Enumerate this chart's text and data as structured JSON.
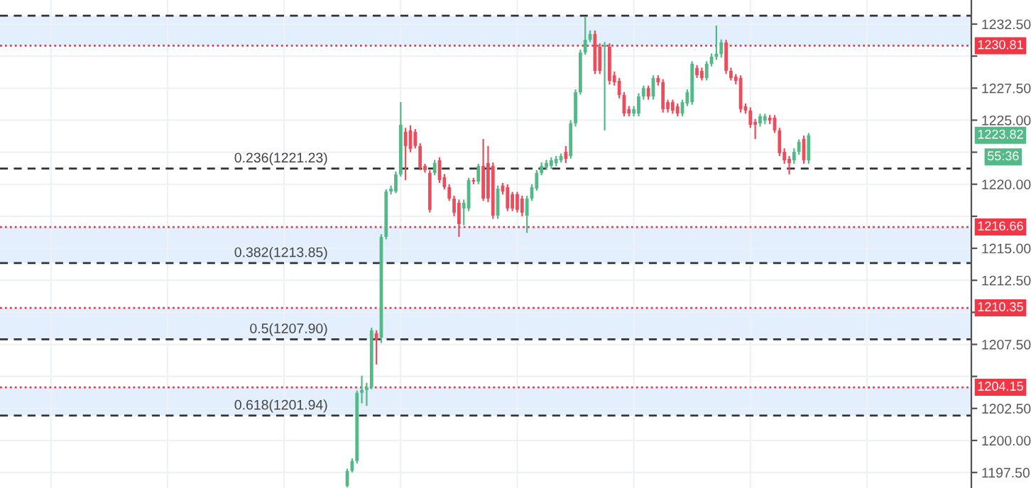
{
  "chart_data": {
    "type": "candlestick",
    "categories": [
      null,
      null,
      null,
      null,
      null,
      null,
      null,
      null,
      null,
      null,
      null,
      null,
      null,
      null,
      null,
      null,
      null,
      null,
      null,
      null,
      null,
      null,
      null,
      null,
      null,
      null,
      null,
      null,
      null,
      null,
      null,
      null,
      null,
      null,
      null,
      null,
      null,
      null,
      null,
      null,
      null,
      null,
      null,
      null,
      null,
      null,
      null,
      null,
      null,
      null,
      null,
      null,
      null,
      null,
      null,
      null,
      null,
      null,
      null,
      null,
      null,
      null,
      null,
      null,
      null,
      null,
      null,
      null,
      null,
      null,
      null,
      null,
      null,
      null,
      null,
      null,
      null,
      null,
      null,
      null,
      null,
      null,
      null,
      null,
      null,
      null,
      null,
      null,
      null,
      null,
      null,
      null,
      null,
      null,
      null,
      null,
      null,
      null,
      null,
      null,
      null,
      null,
      null,
      null,
      null,
      null,
      null,
      null,
      null,
      null,
      null,
      null,
      null,
      null,
      null,
      null,
      null,
      null,
      null,
      null,
      null,
      null,
      null,
      null,
      null,
      null,
      null,
      null,
      null,
      null,
      null,
      null,
      null,
      null,
      null,
      null,
      null,
      null,
      null,
      null,
      null,
      null,
      null,
      null,
      null,
      null,
      null,
      null,
      null,
      null,
      null,
      null,
      null,
      null,
      null,
      null,
      null,
      null,
      null,
      null,
      null,
      null,
      null,
      null,
      null,
      null,
      null,
      null,
      null,
      null,
      null,
      null,
      null,
      null,
      null,
      null,
      null,
      null,
      null,
      null,
      null,
      null,
      null,
      null,
      null,
      null,
      null,
      null,
      null,
      null,
      null,
      null,
      null,
      null,
      null,
      null,
      null,
      null,
      null,
      null
    ],
    "ohlc": [
      null,
      null,
      null,
      null,
      null,
      null,
      null,
      null,
      null,
      null,
      null,
      null,
      null,
      null,
      null,
      null,
      null,
      null,
      null,
      null,
      null,
      null,
      null,
      null,
      null,
      null,
      null,
      null,
      null,
      null,
      null,
      null,
      null,
      null,
      null,
      null,
      null,
      null,
      null,
      null,
      null,
      null,
      null,
      null,
      null,
      null,
      null,
      null,
      null,
      null,
      null,
      null,
      null,
      null,
      null,
      null,
      null,
      null,
      null,
      null,
      null,
      null,
      null,
      null,
      null,
      null,
      null,
      null,
      null,
      null,
      null,
      [
        1196.45,
        1197.8,
        1196.35,
        1197.63
      ],
      [
        1197.63,
        1198.6,
        1197.5,
        1198.4
      ],
      [
        1198.4,
        1203.9,
        1198.2,
        1203.72
      ],
      [
        1203.72,
        1205.05,
        1202.9,
        1203.94
      ],
      [
        1203.94,
        1204.5,
        1202.7,
        1204.16
      ],
      [
        1204.16,
        1208.8,
        1204.0,
        1208.59
      ],
      [
        1208.37,
        1208.6,
        1205.93,
        1207.81
      ],
      [
        1208.03,
        1216.1,
        1207.6,
        1215.89
      ],
      [
        1215.89,
        1219.6,
        1215.7,
        1219.44
      ],
      [
        1219.44,
        1219.9,
        1219.2,
        1219.66
      ],
      [
        1219.44,
        1221.0,
        1219.3,
        1220.77
      ],
      [
        1220.77,
        1226.41,
        1220.6,
        1224.64
      ],
      [
        1224.09,
        1224.4,
        1220.32,
        1222.98
      ],
      [
        1224.2,
        1224.6,
        1222.5,
        1222.76
      ],
      [
        1224.09,
        1224.3,
        1222.8,
        1222.98
      ],
      [
        1222.98,
        1223.2,
        1221.1,
        1221.32
      ],
      [
        1221.43,
        1221.6,
        1220.9,
        1221.1
      ],
      [
        1220.88,
        1221.1,
        1217.8,
        1218.0
      ],
      [
        1220.88,
        1221.9,
        1220.7,
        1221.65
      ],
      [
        1221.87,
        1222.1,
        1220.1,
        1220.32
      ],
      [
        1220.54,
        1220.8,
        1219.6,
        1219.77
      ],
      [
        1219.77,
        1220.0,
        1218.7,
        1218.88
      ],
      [
        1218.88,
        1219.1,
        1217.5,
        1217.78
      ],
      [
        1218.55,
        1218.8,
        1215.89,
        1216.89
      ],
      [
        1218.11,
        1218.8,
        1216.8,
        1218.55
      ],
      [
        1218.11,
        1220.5,
        1217.9,
        1220.32
      ],
      [
        1220.32,
        1220.5,
        1220.0,
        1220.21
      ],
      [
        1220.21,
        1221.6,
        1220.0,
        1221.43
      ],
      [
        1221.43,
        1223.53,
        1218.7,
        1218.88
      ],
      [
        1221.65,
        1222.98,
        1218.6,
        1218.88
      ],
      [
        1221.43,
        1221.7,
        1217.3,
        1217.55
      ],
      [
        1217.55,
        1219.9,
        1217.3,
        1219.66
      ],
      [
        1219.9,
        1220.1,
        1219.2,
        1219.44
      ],
      [
        1219.77,
        1220.0,
        1217.9,
        1218.11
      ],
      [
        1219.22,
        1219.4,
        1217.9,
        1218.11
      ],
      [
        1219.22,
        1219.4,
        1217.8,
        1218.0
      ],
      [
        1218.88,
        1219.1,
        1217.5,
        1217.78
      ],
      [
        1217.55,
        1219.1,
        1216.2,
        1218.88
      ],
      [
        1218.88,
        1220.0,
        1218.7,
        1219.77
      ],
      [
        1219.66,
        1221.1,
        1219.5,
        1220.88
      ],
      [
        1220.88,
        1221.7,
        1220.7,
        1221.43
      ],
      [
        1221.32,
        1221.9,
        1221.1,
        1221.65
      ],
      [
        1221.43,
        1222.1,
        1221.2,
        1221.87
      ],
      [
        1221.65,
        1222.2,
        1221.4,
        1221.98
      ],
      [
        1221.87,
        1222.4,
        1221.7,
        1222.2
      ],
      [
        1222.53,
        1222.98,
        1221.65,
        1221.98
      ],
      [
        1222.2,
        1225.0,
        1222.0,
        1224.75
      ],
      [
        1224.75,
        1227.4,
        1224.5,
        1227.18
      ],
      [
        1227.18,
        1230.5,
        1227.0,
        1230.28
      ],
      [
        1230.28,
        1233.05,
        1230.1,
        1231.28
      ],
      [
        1231.28,
        1232.0,
        1231.1,
        1231.72
      ],
      [
        1231.72,
        1232.0,
        1228.6,
        1228.85
      ],
      [
        1230.73,
        1231.0,
        1228.6,
        1228.85
      ],
      [
        1230.73,
        1231.1,
        1224.2,
        1230.84
      ],
      [
        1230.73,
        1231.0,
        1227.8,
        1228.07
      ],
      [
        1228.5,
        1228.8,
        1227.7,
        1227.96
      ],
      [
        1228.07,
        1228.3,
        1226.7,
        1226.96
      ],
      [
        1226.96,
        1227.2,
        1225.3,
        1225.52
      ],
      [
        1225.86,
        1226.1,
        1225.3,
        1225.52
      ],
      [
        1225.52,
        1226.1,
        1225.3,
        1225.86
      ],
      [
        1225.52,
        1227.1,
        1225.3,
        1226.85
      ],
      [
        1226.85,
        1227.7,
        1226.6,
        1227.5
      ],
      [
        1227.5,
        1227.7,
        1226.6,
        1226.85
      ],
      [
        1226.85,
        1228.5,
        1226.6,
        1228.29
      ],
      [
        1228.29,
        1228.5,
        1227.7,
        1227.96
      ],
      [
        1227.96,
        1228.2,
        1225.6,
        1225.86
      ],
      [
        1226.41,
        1226.6,
        1225.6,
        1225.86
      ],
      [
        1226.41,
        1226.6,
        1225.5,
        1225.75
      ],
      [
        1226.08,
        1226.3,
        1225.3,
        1225.52
      ],
      [
        1225.52,
        1226.6,
        1225.3,
        1226.41
      ],
      [
        1226.3,
        1227.4,
        1226.1,
        1227.18
      ],
      [
        1226.41,
        1229.6,
        1226.2,
        1229.4
      ],
      [
        1229.07,
        1229.3,
        1228.3,
        1228.51
      ],
      [
        1228.85,
        1229.1,
        1228.1,
        1228.29
      ],
      [
        1228.29,
        1229.6,
        1228.1,
        1229.4
      ],
      [
        1229.4,
        1230.2,
        1229.2,
        1229.95
      ],
      [
        1229.95,
        1232.39,
        1229.7,
        1230.17
      ],
      [
        1230.17,
        1231.3,
        1229.9,
        1231.06
      ],
      [
        1231.06,
        1231.28,
        1228.6,
        1228.85
      ],
      [
        1228.85,
        1229.1,
        1228.1,
        1228.29
      ],
      [
        1228.4,
        1228.6,
        1227.8,
        1228.07
      ],
      [
        1228.29,
        1228.5,
        1225.6,
        1225.86
      ],
      [
        1226.08,
        1226.3,
        1225.5,
        1225.75
      ],
      [
        1225.75,
        1226.0,
        1224.4,
        1224.64
      ],
      [
        1224.86,
        1225.1,
        1223.53,
        1224.64
      ],
      [
        1224.75,
        1225.5,
        1224.5,
        1225.3
      ],
      [
        1224.97,
        1225.5,
        1224.7,
        1225.3
      ],
      [
        1225.19,
        1225.4,
        1224.7,
        1224.97
      ],
      [
        1225.19,
        1225.4,
        1224.0,
        1224.2
      ],
      [
        1224.2,
        1224.4,
        1222.2,
        1222.42
      ],
      [
        1222.53,
        1222.8,
        1221.6,
        1221.87
      ],
      [
        1221.98,
        1222.2,
        1220.77,
        1221.65
      ],
      [
        1221.87,
        1222.8,
        1221.6,
        1222.53
      ],
      [
        1222.53,
        1223.5,
        1222.3,
        1223.31
      ],
      [
        1223.53,
        1223.8,
        1221.6,
        1221.87
      ],
      [
        1221.87,
        1224.0,
        1221.6,
        1223.82
      ],
      null,
      null,
      null,
      null,
      null,
      null,
      null,
      null,
      null,
      null,
      null,
      null,
      null,
      null,
      null,
      null,
      null,
      null,
      null,
      null,
      null,
      null,
      null,
      null,
      null,
      null,
      null,
      null,
      null,
      null,
      null,
      null,
      null
    ],
    "ylim": [
      1196.29,
      1234.38
    ],
    "yticks": [
      {
        "value": 1197.5,
        "label": "1197.50"
      },
      {
        "value": 1200,
        "label": "1200.00"
      },
      {
        "value": 1202.5,
        "label": "1202.50"
      },
      {
        "value": 1205,
        "label": null
      },
      {
        "value": 1207.5,
        "label": "1207.50"
      },
      {
        "value": 1210,
        "label": null
      },
      {
        "value": 1212.5,
        "label": "1212.50"
      },
      {
        "value": 1215,
        "label": "1215.00"
      },
      {
        "value": 1217.5,
        "label": null
      },
      {
        "value": 1220,
        "label": "1220.00"
      },
      {
        "value": 1222.5,
        "label": null
      },
      {
        "value": 1225,
        "label": "1225.00"
      },
      {
        "value": 1227.5,
        "label": "1227.50"
      },
      {
        "value": 1230,
        "label": null
      },
      {
        "value": 1232.5,
        "label": "1232.50"
      }
    ],
    "tick_labels": "y",
    "grid": true,
    "bands": [
      {
        "axis": "y",
        "from": 1230.81,
        "to": 1233.15,
        "color": "#e3effd"
      },
      {
        "axis": "y",
        "from": 1213.85,
        "to": 1216.66,
        "color": "#e3effd"
      },
      {
        "axis": "y",
        "from": 1207.9,
        "to": 1210.35,
        "color": "#e3effd"
      },
      {
        "axis": "y",
        "from": 1201.94,
        "to": 1204.15,
        "color": "#e3effd"
      }
    ],
    "ref_lines": [
      {
        "axis": "y",
        "value": 1233.15,
        "label": null,
        "color": "#333333",
        "line_style": "dashed"
      },
      {
        "axis": "y",
        "value": 1221.23,
        "label": "0.236(1221.23)",
        "color": "#333333",
        "line_style": "dashed"
      },
      {
        "axis": "y",
        "value": 1213.85,
        "label": "0.382(1213.85)",
        "color": "#333333",
        "line_style": "dashed"
      },
      {
        "axis": "y",
        "value": 1207.9,
        "label": "0.5(1207.90)",
        "color": "#333333",
        "line_style": "dashed"
      },
      {
        "axis": "y",
        "value": 1201.94,
        "label": "0.618(1201.94)",
        "color": "#333333",
        "line_style": "dashed"
      },
      {
        "axis": "y",
        "value": 1230.81,
        "label": "1230.81",
        "color": "#f23645",
        "line_style": "dotted"
      },
      {
        "axis": "y",
        "value": 1216.66,
        "label": "1216.66",
        "color": "#f23645",
        "line_style": "dotted"
      },
      {
        "axis": "y",
        "value": 1210.35,
        "label": "1210.35",
        "color": "#f23645",
        "line_style": "dotted"
      },
      {
        "axis": "y",
        "value": 1204.15,
        "label": "1204.15",
        "color": "#f23645",
        "line_style": "dotted"
      }
    ],
    "annotations": [
      "1223.82",
      "55:36"
    ]
  }
}
